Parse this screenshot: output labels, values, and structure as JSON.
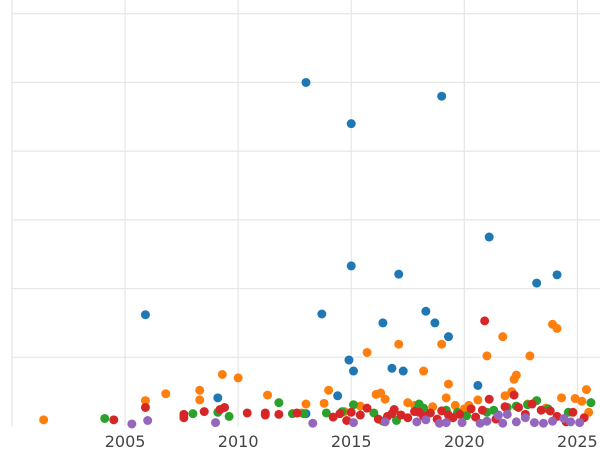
{
  "chart_data": {
    "type": "scatter",
    "title": "",
    "xlabel": "",
    "ylabel": "",
    "xlim": [
      2000,
      2026
    ],
    "ylim": [
      0,
      62
    ],
    "grid": true,
    "legend": "none",
    "x_ticks": [
      2005,
      2010,
      2015,
      2020,
      2025
    ],
    "x_tick_labels": [
      "2005",
      "2010",
      "2015",
      "2020",
      "2025"
    ],
    "y_ticks": [
      10,
      20,
      30,
      40,
      50,
      60
    ],
    "series": [
      {
        "color": "#1f77b4",
        "points": [
          [
            2005.9,
            16.2
          ],
          [
            2009.1,
            4.1
          ],
          [
            2013.0,
            50.0
          ],
          [
            2013.7,
            16.3
          ],
          [
            2014.4,
            4.4
          ],
          [
            2014.9,
            9.6
          ],
          [
            2015.1,
            8.0
          ],
          [
            2015.0,
            23.3
          ],
          [
            2015.0,
            44.0
          ],
          [
            2016.4,
            15.0
          ],
          [
            2016.8,
            8.4
          ],
          [
            2017.1,
            22.1
          ],
          [
            2017.3,
            8.0
          ],
          [
            2018.3,
            16.7
          ],
          [
            2018.7,
            15.0
          ],
          [
            2019.0,
            48.0
          ],
          [
            2019.3,
            13.0
          ],
          [
            2020.6,
            5.9
          ],
          [
            2021.1,
            27.5
          ],
          [
            2023.2,
            20.8
          ],
          [
            2024.1,
            22.0
          ],
          [
            2013.0,
            1.8
          ],
          [
            2018.2,
            2.0
          ],
          [
            2021.5,
            1.6
          ]
        ]
      },
      {
        "color": "#ff7f0e",
        "points": [
          [
            2001.4,
            0.9
          ],
          [
            2005.9,
            3.7
          ],
          [
            2006.8,
            4.7
          ],
          [
            2008.3,
            5.2
          ],
          [
            2008.3,
            3.8
          ],
          [
            2009.3,
            7.5
          ],
          [
            2010.0,
            7.0
          ],
          [
            2011.3,
            4.5
          ],
          [
            2013.0,
            3.2
          ],
          [
            2013.8,
            3.3
          ],
          [
            2014.0,
            5.2
          ],
          [
            2014.7,
            2.1
          ],
          [
            2015.7,
            10.7
          ],
          [
            2016.1,
            4.6
          ],
          [
            2016.3,
            4.8
          ],
          [
            2016.5,
            3.9
          ],
          [
            2016.9,
            2.3
          ],
          [
            2017.1,
            11.9
          ],
          [
            2017.5,
            3.4
          ],
          [
            2018.2,
            8.0
          ],
          [
            2018.6,
            2.8
          ],
          [
            2019.0,
            11.9
          ],
          [
            2019.2,
            4.1
          ],
          [
            2019.3,
            6.1
          ],
          [
            2019.6,
            3.0
          ],
          [
            2020.0,
            2.5
          ],
          [
            2020.6,
            3.8
          ],
          [
            2021.0,
            10.2
          ],
          [
            2021.7,
            13.0
          ],
          [
            2021.8,
            4.4
          ],
          [
            2022.1,
            5.0
          ],
          [
            2022.2,
            6.8
          ],
          [
            2022.3,
            7.4
          ],
          [
            2022.8,
            3.2
          ],
          [
            2022.9,
            10.2
          ],
          [
            2023.6,
            2.6
          ],
          [
            2023.9,
            14.8
          ],
          [
            2024.1,
            14.2
          ],
          [
            2024.3,
            4.1
          ],
          [
            2024.9,
            4.0
          ],
          [
            2025.2,
            3.6
          ],
          [
            2025.4,
            5.3
          ],
          [
            2025.5,
            2.0
          ],
          [
            2020.2,
            3.0
          ],
          [
            2017.8,
            3.0
          ],
          [
            2015.4,
            2.9
          ],
          [
            2012.8,
            1.9
          ]
        ]
      },
      {
        "color": "#2ca02c",
        "points": [
          [
            2004.1,
            1.1
          ],
          [
            2008.0,
            1.8
          ],
          [
            2009.1,
            2.0
          ],
          [
            2009.6,
            1.4
          ],
          [
            2011.8,
            3.4
          ],
          [
            2012.4,
            1.8
          ],
          [
            2012.9,
            1.8
          ],
          [
            2013.9,
            1.9
          ],
          [
            2014.6,
            2.1
          ],
          [
            2015.1,
            3.1
          ],
          [
            2016.0,
            1.9
          ],
          [
            2016.4,
            0.7
          ],
          [
            2017.0,
            0.8
          ],
          [
            2017.9,
            2.4
          ],
          [
            2018.0,
            3.2
          ],
          [
            2018.2,
            2.6
          ],
          [
            2019.2,
            2.3
          ],
          [
            2020.1,
            1.5
          ],
          [
            2021.0,
            2.0
          ],
          [
            2021.3,
            2.3
          ],
          [
            2021.9,
            2.7
          ],
          [
            2022.3,
            2.9
          ],
          [
            2022.8,
            3.1
          ],
          [
            2023.2,
            3.7
          ],
          [
            2023.7,
            2.5
          ],
          [
            2024.6,
            2.0
          ],
          [
            2025.6,
            3.4
          ],
          [
            2019.7,
            2.0
          ]
        ]
      },
      {
        "color": "#d62728",
        "points": [
          [
            2004.5,
            0.9
          ],
          [
            2005.9,
            2.7
          ],
          [
            2007.6,
            1.2
          ],
          [
            2007.6,
            1.7
          ],
          [
            2008.5,
            2.1
          ],
          [
            2009.2,
            2.4
          ],
          [
            2009.4,
            2.7
          ],
          [
            2010.4,
            1.9
          ],
          [
            2011.2,
            1.9
          ],
          [
            2011.2,
            1.6
          ],
          [
            2011.8,
            1.7
          ],
          [
            2012.6,
            1.9
          ],
          [
            2014.2,
            1.3
          ],
          [
            2014.5,
            1.8
          ],
          [
            2014.8,
            0.8
          ],
          [
            2015.0,
            2.0
          ],
          [
            2015.4,
            1.6
          ],
          [
            2015.7,
            2.6
          ],
          [
            2016.2,
            1.0
          ],
          [
            2016.6,
            1.4
          ],
          [
            2016.9,
            2.4
          ],
          [
            2017.2,
            1.6
          ],
          [
            2017.5,
            1.2
          ],
          [
            2017.8,
            2.1
          ],
          [
            2018.2,
            1.4
          ],
          [
            2018.5,
            1.9
          ],
          [
            2018.8,
            1.0
          ],
          [
            2019.0,
            2.2
          ],
          [
            2019.3,
            1.6
          ],
          [
            2019.8,
            1.7
          ],
          [
            2020.3,
            2.5
          ],
          [
            2020.5,
            1.3
          ],
          [
            2020.9,
            15.3
          ],
          [
            2021.1,
            3.9
          ],
          [
            2021.4,
            1.0
          ],
          [
            2021.8,
            2.8
          ],
          [
            2022.2,
            4.5
          ],
          [
            2022.4,
            2.7
          ],
          [
            2022.7,
            1.7
          ],
          [
            2023.0,
            3.2
          ],
          [
            2023.4,
            2.3
          ],
          [
            2023.8,
            2.2
          ],
          [
            2024.1,
            1.4
          ],
          [
            2024.5,
            0.6
          ],
          [
            2024.8,
            2.0
          ],
          [
            2025.3,
            1.2
          ],
          [
            2018.0,
            2.0
          ],
          [
            2019.5,
            1.2
          ],
          [
            2020.8,
            2.3
          ],
          [
            2016.8,
            1.8
          ]
        ]
      },
      {
        "color": "#9467bd",
        "points": [
          [
            2005.3,
            0.3
          ],
          [
            2006.0,
            0.8
          ],
          [
            2009.0,
            0.5
          ],
          [
            2013.3,
            0.4
          ],
          [
            2015.1,
            0.5
          ],
          [
            2016.5,
            0.6
          ],
          [
            2017.9,
            0.6
          ],
          [
            2018.3,
            0.9
          ],
          [
            2018.9,
            0.4
          ],
          [
            2019.2,
            0.5
          ],
          [
            2019.9,
            0.5
          ],
          [
            2020.7,
            0.4
          ],
          [
            2021.0,
            0.7
          ],
          [
            2021.5,
            1.5
          ],
          [
            2021.7,
            0.4
          ],
          [
            2021.9,
            1.7
          ],
          [
            2022.3,
            0.6
          ],
          [
            2023.1,
            0.5
          ],
          [
            2023.5,
            0.4
          ],
          [
            2023.9,
            0.7
          ],
          [
            2024.4,
            1.1
          ],
          [
            2024.7,
            0.6
          ],
          [
            2025.1,
            0.5
          ],
          [
            2022.7,
            1.2
          ]
        ]
      }
    ]
  }
}
